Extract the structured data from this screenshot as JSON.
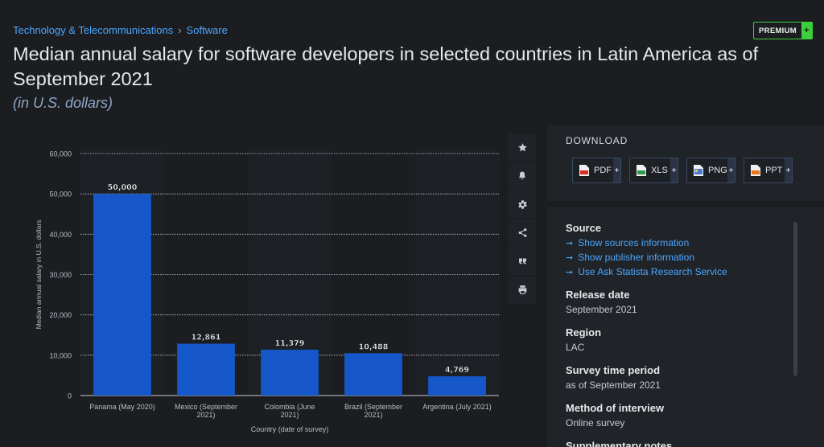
{
  "breadcrumb": {
    "parent": "Technology & Telecommunications",
    "separator": "›",
    "current": "Software"
  },
  "premium": {
    "label": "PREMIUM",
    "plus": "+"
  },
  "title": "Median annual salary for software developers in selected countries in Latin America as of September 2021",
  "subtitle": "(in U.S. dollars)",
  "toolbar": {
    "icons": [
      "star-icon",
      "bell-icon",
      "gear-icon",
      "share-icon",
      "quote-icon",
      "print-icon"
    ]
  },
  "download": {
    "title": "DOWNLOAD",
    "buttons": [
      {
        "label": "PDF",
        "color": "#d93025"
      },
      {
        "label": "XLS",
        "color": "#2e9b47"
      },
      {
        "label": "PNG",
        "color": "#4a7bd4"
      },
      {
        "label": "PPT",
        "color": "#e8741e"
      }
    ],
    "plus": "+"
  },
  "info": {
    "source_title": "Source",
    "source_links": [
      "Show sources information",
      "Show publisher information",
      "Use Ask Statista Research Service"
    ],
    "release_title": "Release date",
    "release_value": "September 2021",
    "region_title": "Region",
    "region_value": "LAC",
    "period_title": "Survey time period",
    "period_value": "as of September 2021",
    "method_title": "Method of interview",
    "method_value": "Online survey",
    "supp_title": "Supplementary notes"
  },
  "colors": {
    "bar": "#1557c8",
    "link": "#4aa7ff",
    "premium": "#3bcf3b"
  },
  "chart_data": {
    "type": "bar",
    "categories": [
      "Panama (May 2020)",
      "Mexico (September 2021)",
      "Colombia (June 2021)",
      "Brazil (September 2021)",
      "Argentina (July 2021)"
    ],
    "category_lines": [
      [
        "Panama (May 2020)"
      ],
      [
        "Mexico (September",
        "2021)"
      ],
      [
        "Colombia (June",
        "2021)"
      ],
      [
        "Brazil (September",
        "2021)"
      ],
      [
        "Argentina (July 2021)"
      ]
    ],
    "values": [
      50000,
      12861,
      11379,
      10488,
      4769
    ],
    "value_labels": [
      "50,000",
      "12,861",
      "11,379",
      "10,488",
      "4,769"
    ],
    "xlabel": "Country (date of survey)",
    "ylabel": "Median annual salary in U.S. dollars",
    "ylim": [
      0,
      60000
    ],
    "yticks": [
      0,
      10000,
      20000,
      30000,
      40000,
      50000,
      60000
    ],
    "ytick_labels": [
      "0",
      "10,000",
      "20,000",
      "30,000",
      "40,000",
      "50,000",
      "60,000"
    ],
    "grid": true,
    "legend": "none"
  }
}
